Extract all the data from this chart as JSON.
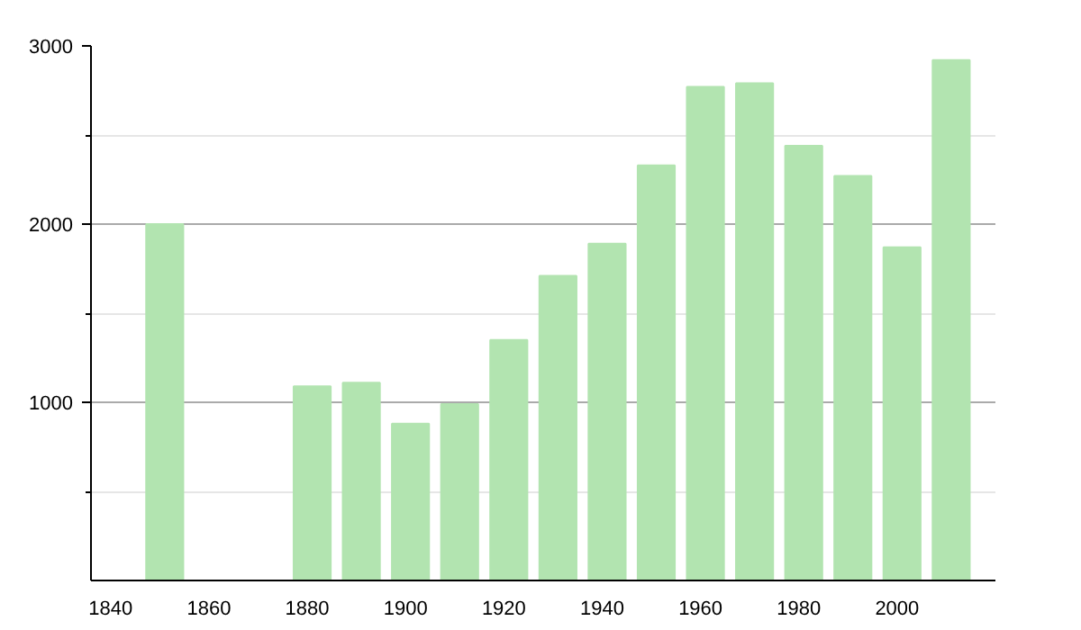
{
  "chart_data": {
    "type": "bar",
    "x": [
      1851,
      1881,
      1891,
      1901,
      1911,
      1921,
      1931,
      1941,
      1951,
      1961,
      1971,
      1981,
      1991,
      2001,
      2011
    ],
    "values": [
      2000,
      1090,
      1110,
      880,
      990,
      1350,
      1710,
      1890,
      2330,
      2770,
      2790,
      2440,
      2270,
      1870,
      2920
    ],
    "color": "#b2e4b0",
    "xlim": [
      1836,
      2020
    ],
    "xticks": [
      1840,
      1860,
      1880,
      1900,
      1920,
      1940,
      1960,
      1980,
      2000
    ],
    "ylim": [
      0,
      3000
    ],
    "yticks": [
      {
        "value": 500,
        "label": null
      },
      1000,
      {
        "value": 1500,
        "label": null
      },
      2000,
      {
        "value": 2500,
        "label": null
      },
      3000
    ],
    "grid": "y"
  }
}
